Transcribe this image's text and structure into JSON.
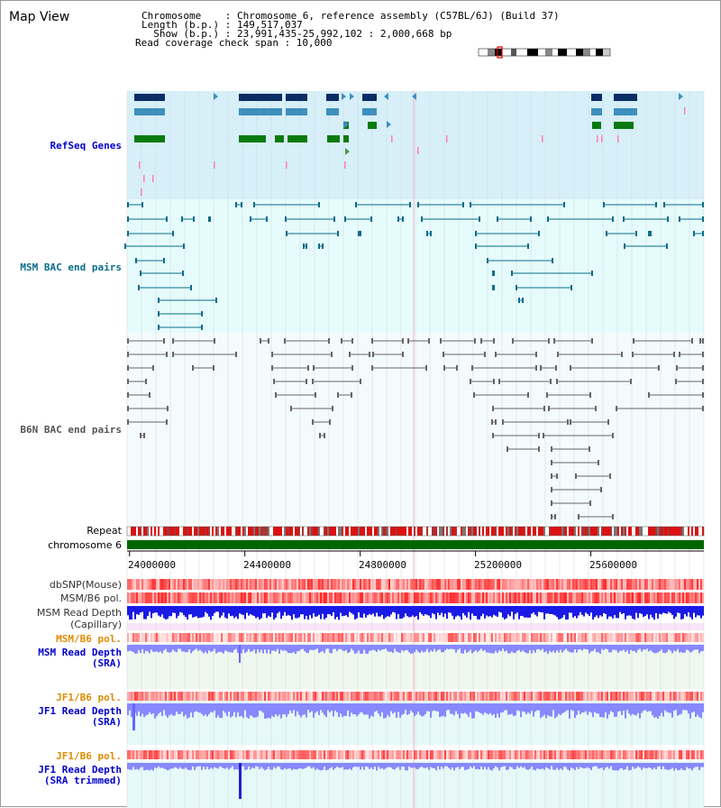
{
  "header": {
    "title": "Map View",
    "chromosome_line": "Chromosome    : Chromosome 6, reference assembly (C57BL/6J) (Build 37)",
    "length_line": "Length (b.p.) : 149,517,037",
    "show_line": "  Show (b.p.) : 23,991,435-25,992,102 : 2,000,668 bp",
    "coverage_line": "Read coverage check span : 10,000"
  },
  "tracks": {
    "refseq": {
      "label": "RefSeq Genes",
      "color": "#0000cc",
      "bg": "#d7eff9"
    },
    "msm_bac": {
      "label": "MSM BAC end pairs",
      "color": "#0a6d8b",
      "bg": "#e6fbfb"
    },
    "b6n_bac": {
      "label": "B6N BAC end pairs",
      "color": "#555555",
      "bg": "#f4fbfc"
    },
    "repeat": {
      "label": "Repeat"
    },
    "chromosome": {
      "label": "chromosome 6"
    },
    "dbsnp": {
      "label": "dbSNP(Mouse)"
    },
    "msm_pol": {
      "label": "MSM/B6 pol."
    },
    "msm_depth_cap": {
      "label1": "MSM Read Depth",
      "label2": "(Capillary)"
    },
    "msm_pol2": {
      "label": "MSM/B6 pol."
    },
    "msm_depth_sra": {
      "label1": "MSM Read Depth",
      "label2": "(SRA)"
    },
    "jf1_pol": {
      "label": "JF1/B6 pol."
    },
    "jf1_depth_sra": {
      "label1": "JF1 Read Depth",
      "label2": "(SRA)"
    },
    "jf1_pol2": {
      "label": "JF1/B6 pol."
    },
    "jf1_depth_trim": {
      "label1": "JF1 Read Depth",
      "label2": "(SRA trimmed)"
    }
  },
  "axis": {
    "ticks": [
      "24000000",
      "24400000",
      "24800000",
      "25200000",
      "25600000"
    ],
    "tick_values": [
      24000000,
      24400000,
      24800000,
      25200000,
      25600000
    ],
    "start": 23991435,
    "end": 25992102
  },
  "colors": {
    "gene_dark": "#0b2d66",
    "gene_mid": "#3d8fbd",
    "gene_green": "#0a7a10",
    "pink": "#ff80b0",
    "bac_teal": "#0a6d8b",
    "bac_grey": "#666666",
    "depth_blue": "#1a1ae6",
    "depth_light": "#8888ff",
    "chrom_green": "#006600",
    "orange_label": "#e08a00",
    "blue_label": "#0000cc"
  }
}
